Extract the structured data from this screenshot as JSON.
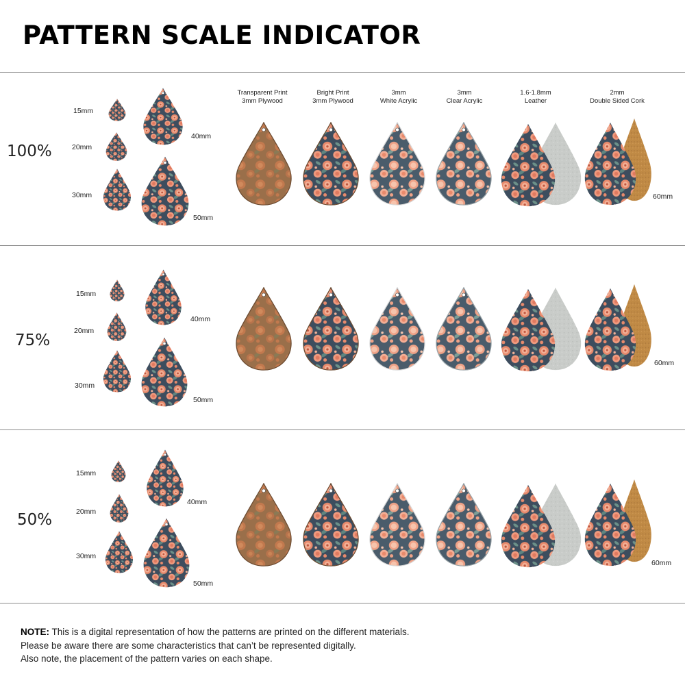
{
  "title": "PATTERN SCALE INDICATOR",
  "materials": [
    {
      "line1": "Transparent Print",
      "line2": "3mm Plywood"
    },
    {
      "line1": "Bright Print",
      "line2": "3mm Plywood"
    },
    {
      "line1": "3mm",
      "line2": "White Acrylic"
    },
    {
      "line1": "3mm",
      "line2": "Clear Acrylic"
    },
    {
      "line1": "1.6-1.8mm",
      "line2": "Leather"
    },
    {
      "line1": "2mm",
      "line2": "Double Sided Cork"
    }
  ],
  "sizes": [
    "15mm",
    "20mm",
    "30mm",
    "40mm",
    "50mm"
  ],
  "large_size": "60mm",
  "scales": [
    "100%",
    "75%",
    "50%"
  ],
  "note": {
    "prefix": "NOTE:",
    "line1": " This is a digital representation of how the patterns are printed on the different materials.",
    "line2": "Please be aware there are some characteristics that can’t be represented digitally.",
    "line3": "Also note, the placement of the pattern varies on each shape."
  },
  "colors": {
    "navy": "#3d4d5e",
    "coral": "#e88a6c",
    "peach": "#f2b198",
    "teal": "#5f8580",
    "wood_base": "#9a6f4a",
    "wood_flower": "#c2794e",
    "leather": "#c9ccc9",
    "cork": "#c08a45"
  }
}
